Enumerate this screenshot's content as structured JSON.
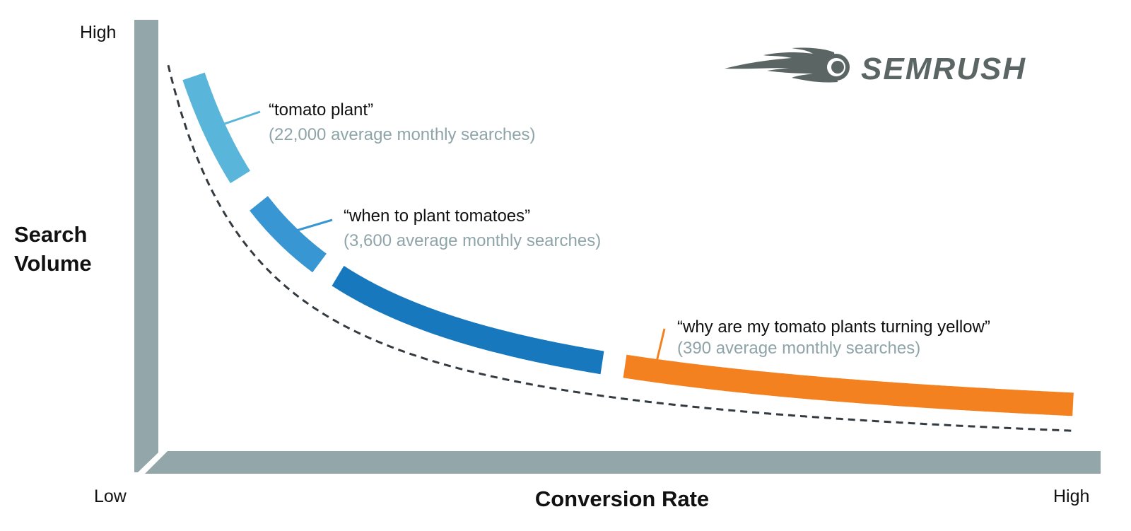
{
  "axes": {
    "y_title_line1": "Search",
    "y_title_line2": "Volume",
    "y_high": "High",
    "x_title": "Conversion Rate",
    "x_low": "Low",
    "x_high": "High"
  },
  "keywords": [
    {
      "label": "“tomato plant”",
      "searches": "(22,000 average monthly searches)",
      "color": "#5ab5da"
    },
    {
      "label": "“when to plant tomatoes”",
      "searches": "(3,600 average monthly searches)",
      "color": "#3896d3"
    },
    {
      "label": "“why are my tomato plants turning yellow”",
      "searches": "(390 average monthly searches)",
      "color": "#f48120"
    }
  ],
  "mid_band_color": "#1778be",
  "axis_color": "#93a7ab",
  "logo": {
    "text": "SEMRUSH",
    "color": "#5b6664"
  }
}
